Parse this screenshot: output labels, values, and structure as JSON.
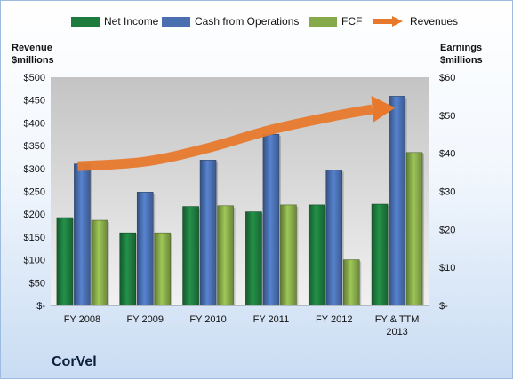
{
  "legend": [
    {
      "label": "Net Income",
      "color": "#1e7b3e",
      "kind": "bar"
    },
    {
      "label": "Cash from Operations",
      "color": "#4a6fb0",
      "kind": "bar"
    },
    {
      "label": "FCF",
      "color": "#86a94a",
      "kind": "bar"
    },
    {
      "label": "Revenues",
      "color": "#e8792c",
      "kind": "arrow"
    }
  ],
  "company": "CorVel",
  "chart_data": {
    "type": "bar",
    "categories": [
      "FY 2008",
      "FY 2009",
      "FY 2010",
      "FY 2011",
      "FY 2012",
      "FY & TTM 2013"
    ],
    "left_axis": {
      "title_line1": "Revenue",
      "title_line2": "$millions",
      "min": 0,
      "max": 500,
      "step": 50,
      "ticks": [
        "$-",
        "$50",
        "$100",
        "$150",
        "$200",
        "$250",
        "$300",
        "$350",
        "$400",
        "$450",
        "$500"
      ]
    },
    "right_axis": {
      "title_line1": "Earnings",
      "title_line2": "$millions",
      "min": 0,
      "max": 60,
      "step": 10,
      "ticks": [
        "$-",
        "$10",
        "$20",
        "$30",
        "$40",
        "$50",
        "$60"
      ]
    },
    "series": [
      {
        "name": "Net Income",
        "axis": "right",
        "color": "#1e7b3e",
        "values": [
          23.1,
          19.1,
          26.0,
          24.6,
          26.4,
          26.6
        ]
      },
      {
        "name": "Cash from Operations",
        "axis": "right",
        "color": "#4a6fb0",
        "values": [
          37.2,
          29.8,
          38.2,
          45.0,
          35.6,
          55.0
        ]
      },
      {
        "name": "FCF",
        "axis": "right",
        "color": "#86a94a",
        "values": [
          22.4,
          19.1,
          26.2,
          26.4,
          12.0,
          40.2
        ]
      },
      {
        "name": "Revenues",
        "axis": "left",
        "type": "line",
        "color": "#e8792c",
        "values": [
          305,
          315,
          345,
          385,
          415,
          430
        ]
      }
    ],
    "grid": false
  }
}
